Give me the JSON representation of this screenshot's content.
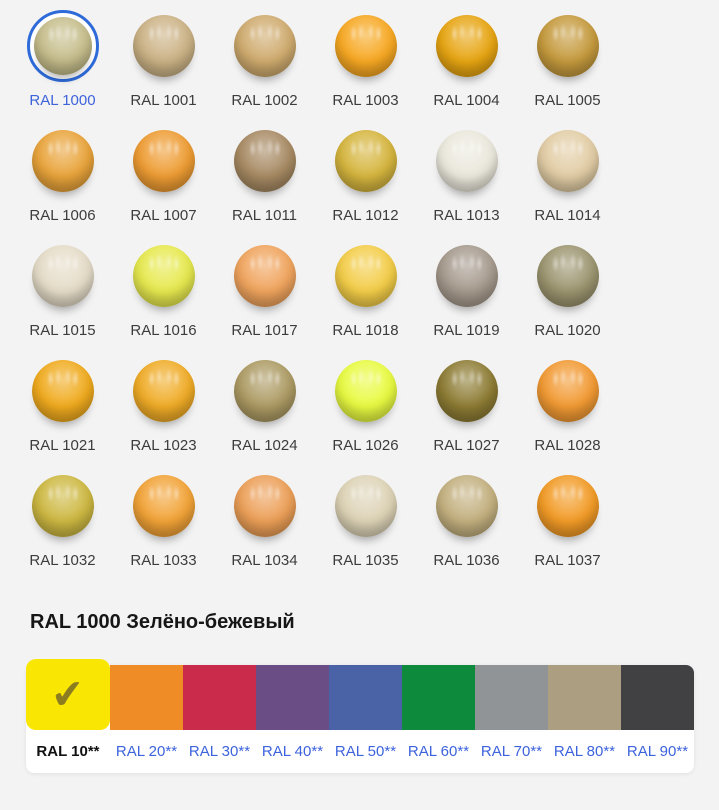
{
  "page": {
    "background": "#f3f3f3"
  },
  "palette_grid": {
    "selected_ring_color": "#2E6BD9",
    "label_color": "#3C3C3C",
    "selected_label_color": "#3D63DC",
    "items": [
      {
        "code": "RAL 1000",
        "color": "#C6BE8C",
        "selected": true
      },
      {
        "code": "RAL 1001",
        "color": "#CBB285"
      },
      {
        "code": "RAL 1002",
        "color": "#CFAB6E"
      },
      {
        "code": "RAL 1003",
        "color": "#F7A822"
      },
      {
        "code": "RAL 1004",
        "color": "#E7A512"
      },
      {
        "code": "RAL 1005",
        "color": "#C59A3D"
      },
      {
        "code": "RAL 1006",
        "color": "#E9A43B"
      },
      {
        "code": "RAL 1007",
        "color": "#EE9C33"
      },
      {
        "code": "RAL 1011",
        "color": "#A78A63"
      },
      {
        "code": "RAL 1012",
        "color": "#D5B53E"
      },
      {
        "code": "RAL 1013",
        "color": "#EBE8DC"
      },
      {
        "code": "RAL 1014",
        "color": "#E2CDA5"
      },
      {
        "code": "RAL 1015",
        "color": "#E5DCC8"
      },
      {
        "code": "RAL 1016",
        "color": "#E6E94E"
      },
      {
        "code": "RAL 1017",
        "color": "#F0A45D"
      },
      {
        "code": "RAL 1018",
        "color": "#F3CD48"
      },
      {
        "code": "RAL 1019",
        "color": "#A69A8D"
      },
      {
        "code": "RAL 1020",
        "color": "#9C9570"
      },
      {
        "code": "RAL 1021",
        "color": "#F0AB1E"
      },
      {
        "code": "RAL 1023",
        "color": "#F0AC27"
      },
      {
        "code": "RAL 1024",
        "color": "#AD9B64"
      },
      {
        "code": "RAL 1026",
        "color": "#E8FA41"
      },
      {
        "code": "RAL 1027",
        "color": "#8D7C34"
      },
      {
        "code": "RAL 1028",
        "color": "#F29A33"
      },
      {
        "code": "RAL 1032",
        "color": "#CDB842"
      },
      {
        "code": "RAL 1033",
        "color": "#F2A337"
      },
      {
        "code": "RAL 1034",
        "color": "#EC9F57"
      },
      {
        "code": "RAL 1035",
        "color": "#DDD3B6"
      },
      {
        "code": "RAL 1036",
        "color": "#C3B07F"
      },
      {
        "code": "RAL 1037",
        "color": "#F29B26"
      }
    ]
  },
  "detail": {
    "title": "RAL 1000 Зелёно-бежевый"
  },
  "series_bar": {
    "check_icon": "✔",
    "check_color": "#8C7D20",
    "link_color": "#3D63DC",
    "tabs": [
      {
        "label": "RAL 10**",
        "color": "#FAE603",
        "selected": true
      },
      {
        "label": "RAL 20**",
        "color": "#F08C25"
      },
      {
        "label": "RAL 30**",
        "color": "#CB2B4A"
      },
      {
        "label": "RAL 40**",
        "color": "#6A4D84"
      },
      {
        "label": "RAL 50**",
        "color": "#4A63A7"
      },
      {
        "label": "RAL 60**",
        "color": "#0D8A3C"
      },
      {
        "label": "RAL 70**",
        "color": "#909496"
      },
      {
        "label": "RAL 80**",
        "color": "#AC9F81"
      },
      {
        "label": "RAL 90**",
        "color": "#414042"
      }
    ]
  }
}
